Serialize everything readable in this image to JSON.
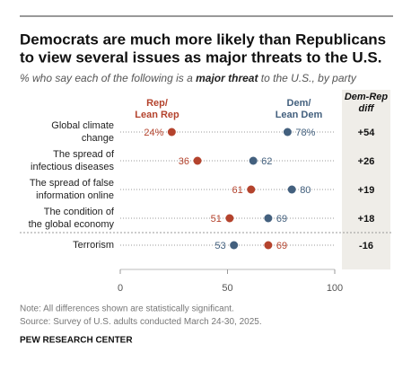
{
  "chart_data": {
    "type": "dot",
    "title": [
      "Democrats are much more likely than Republicans",
      "to view several issues as major threats to the U.S."
    ],
    "subtitle": [
      "% who say each of the following is a ",
      "major threat",
      " to the U.S., by party"
    ],
    "categories": [
      [
        "Global climate",
        "change"
      ],
      [
        "The spread of",
        "infectious diseases"
      ],
      [
        "The spread of false",
        "information online"
      ],
      [
        "The condition of",
        "the global economy"
      ],
      [
        "Terrorism"
      ]
    ],
    "series": [
      {
        "name": [
          "Rep/",
          "Lean Rep"
        ],
        "color": "#b4432d",
        "values": [
          24,
          36,
          61,
          51,
          69
        ],
        "value_labels": [
          "24%",
          "36",
          "61",
          "51",
          "69"
        ]
      },
      {
        "name": [
          "Dem/",
          "Lean Dem"
        ],
        "color": "#43607e",
        "values": [
          78,
          62,
          80,
          69,
          53
        ],
        "value_labels": [
          "78%",
          "62",
          "80",
          "69",
          "53"
        ]
      }
    ],
    "diff": {
      "title": [
        "Dem-Rep",
        "diff"
      ],
      "values": [
        54,
        26,
        19,
        18,
        -16
      ],
      "value_labels": [
        "+54",
        "+26",
        "+19",
        "+18",
        "-16"
      ]
    },
    "xlim": [
      0,
      100
    ],
    "xticks": [
      0,
      50,
      100
    ],
    "note": "Note: All differences shown are statistically significant.",
    "source": "Survey of U.S. adults conducted March 24-30, 2025.",
    "source_prefix": "Source: ",
    "credit": "PEW RESEARCH CENTER"
  }
}
